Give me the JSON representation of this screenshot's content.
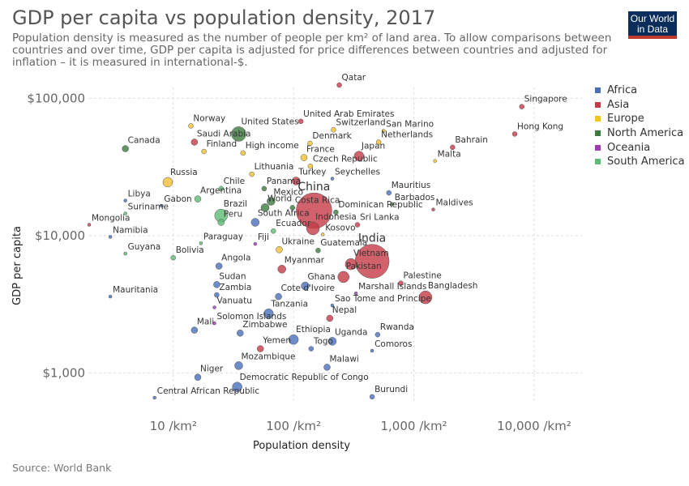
{
  "header": {
    "title": "GDP per capita vs population density, 2017",
    "subtitle": "Population density is measured as the number of people per km² of land area. To allow comparisons between countries and over time, GDP per capita is adjusted for price differences between countries and adjusted for inflation – it is measured in international-$."
  },
  "logo": {
    "line1": "Our World",
    "line2": "in Data"
  },
  "source": "Source: World Bank",
  "colors": {
    "Africa": "#4a6fb9",
    "Asia": "#c53b47",
    "Europe": "#f2c12e",
    "North America": "#3d7a3f",
    "Oceania": "#9c3cb5",
    "South America": "#5cbc74"
  },
  "chart_data": {
    "type": "scatter",
    "title": "GDP per capita vs population density, 2017",
    "xlabel": "Population density",
    "ylabel": "GDP per capita",
    "x_scale": "log",
    "y_scale": "log",
    "xlim": [
      2,
      25000
    ],
    "ylim": [
      600,
      120000
    ],
    "x_ticks": [
      {
        "value": 10,
        "label": "10 /km²"
      },
      {
        "value": 100,
        "label": "100 /km²"
      },
      {
        "value": 1000,
        "label": "1,000 /km²"
      },
      {
        "value": 10000,
        "label": "10,000 /km²"
      }
    ],
    "y_ticks": [
      {
        "value": 1000,
        "label": "$1,000"
      },
      {
        "value": 10000,
        "label": "$10,000"
      },
      {
        "value": 100000,
        "label": "$100,000"
      }
    ],
    "grid": true,
    "legend": {
      "position": "right",
      "entries": [
        "Africa",
        "Asia",
        "Europe",
        "North America",
        "Oceania",
        "South America"
      ]
    },
    "points": [
      {
        "label": "Qatar",
        "x": 240,
        "y": 125000,
        "region": "Asia",
        "size": 3
      },
      {
        "label": "Singapore",
        "x": 7900,
        "y": 87000,
        "region": "Asia",
        "size": 3
      },
      {
        "label": "United Arab Emirates",
        "x": 115,
        "y": 68000,
        "region": "Asia",
        "size": 3
      },
      {
        "label": "Norway",
        "x": 14,
        "y": 63000,
        "region": "Europe",
        "size": 3
      },
      {
        "label": "Switzerland",
        "x": 215,
        "y": 59000,
        "region": "Europe",
        "size": 3
      },
      {
        "label": "San Marino",
        "x": 560,
        "y": 58000,
        "region": "Europe",
        "size": 2
      },
      {
        "label": "United States",
        "x": 35,
        "y": 55000,
        "region": "North America",
        "size": 9
      },
      {
        "label": "Hong Kong",
        "x": 6900,
        "y": 55000,
        "region": "Asia",
        "size": 3
      },
      {
        "label": "Saudi Arabia",
        "x": 15,
        "y": 48000,
        "region": "Asia",
        "size": 4
      },
      {
        "label": "Netherlands",
        "x": 510,
        "y": 48000,
        "region": "Europe",
        "size": 3
      },
      {
        "label": "Denmark",
        "x": 137,
        "y": 47000,
        "region": "Europe",
        "size": 3
      },
      {
        "label": "Bahrain",
        "x": 2100,
        "y": 44000,
        "region": "Asia",
        "size": 3
      },
      {
        "label": "Canada",
        "x": 4,
        "y": 43000,
        "region": "North America",
        "size": 4
      },
      {
        "label": "Finland",
        "x": 18,
        "y": 41000,
        "region": "Europe",
        "size": 3
      },
      {
        "label": "High income",
        "x": 38,
        "y": 40000,
        "region": "Europe",
        "size": 3
      },
      {
        "label": "Japan",
        "x": 350,
        "y": 38000,
        "region": "Asia",
        "size": 6
      },
      {
        "label": "France",
        "x": 122,
        "y": 37000,
        "region": "Europe",
        "size": 4
      },
      {
        "label": "Malta",
        "x": 1500,
        "y": 35000,
        "region": "Europe",
        "size": 2
      },
      {
        "label": "Czech Republic",
        "x": 138,
        "y": 32000,
        "region": "Europe",
        "size": 3
      },
      {
        "label": "Lithuania",
        "x": 45,
        "y": 28000,
        "region": "Europe",
        "size": 3
      },
      {
        "label": "Seychelles",
        "x": 210,
        "y": 26000,
        "region": "Africa",
        "size": 2
      },
      {
        "label": "Turkey",
        "x": 105,
        "y": 25000,
        "region": "Asia",
        "size": 5
      },
      {
        "label": "Russia",
        "x": 9,
        "y": 24500,
        "region": "Europe",
        "size": 6
      },
      {
        "label": "Panama",
        "x": 57,
        "y": 22000,
        "region": "North America",
        "size": 3
      },
      {
        "label": "Chile",
        "x": 25,
        "y": 22000,
        "region": "South America",
        "size": 3
      },
      {
        "label": "Mauritius",
        "x": 620,
        "y": 20500,
        "region": "Africa",
        "size": 3
      },
      {
        "label": "Argentina",
        "x": 16,
        "y": 18500,
        "region": "South America",
        "size": 4
      },
      {
        "label": "Libya",
        "x": 4,
        "y": 18000,
        "region": "Africa",
        "size": 2
      },
      {
        "label": "China",
        "x": 148,
        "y": 15200,
        "region": "Asia",
        "size": 22
      },
      {
        "label": "Mexico",
        "x": 65,
        "y": 17800,
        "region": "North America",
        "size": 5
      },
      {
        "label": "Barbados",
        "x": 660,
        "y": 17000,
        "region": "North America",
        "size": 2
      },
      {
        "label": "Gabon",
        "x": 8,
        "y": 16500,
        "region": "Africa",
        "size": 2
      },
      {
        "label": "World",
        "x": 58,
        "y": 16000,
        "region": "North America",
        "size": 5
      },
      {
        "label": "Costa Rica",
        "x": 98,
        "y": 16000,
        "region": "North America",
        "size": 3
      },
      {
        "label": "Maldives",
        "x": 1450,
        "y": 15500,
        "region": "Asia",
        "size": 2
      },
      {
        "label": "Dominican Republic",
        "x": 225,
        "y": 14800,
        "region": "North America",
        "size": 3
      },
      {
        "label": "Suriname",
        "x": 4,
        "y": 14500,
        "region": "South America",
        "size": 2
      },
      {
        "label": "Brazil",
        "x": 25,
        "y": 14000,
        "region": "South America",
        "size": 8
      },
      {
        "label": "South Africa",
        "x": 48,
        "y": 12500,
        "region": "Africa",
        "size": 5
      },
      {
        "label": "Indonesia",
        "x": 145,
        "y": 11300,
        "region": "Asia",
        "size": 8
      },
      {
        "label": "Sri Lanka",
        "x": 340,
        "y": 12000,
        "region": "Asia",
        "size": 3
      },
      {
        "label": "Mongolia",
        "x": 2,
        "y": 12000,
        "region": "Asia",
        "size": 2
      },
      {
        "label": "Ecuador",
        "x": 68,
        "y": 10800,
        "region": "South America",
        "size": 3
      },
      {
        "label": "Peru",
        "x": 25,
        "y": 12500,
        "region": "South America",
        "size": 4
      },
      {
        "label": "Kosovo",
        "x": 175,
        "y": 10200,
        "region": "Europe",
        "size": 2
      },
      {
        "label": "Namibia",
        "x": 3,
        "y": 9800,
        "region": "Africa",
        "size": 2
      },
      {
        "label": "Fiji",
        "x": 48,
        "y": 8700,
        "region": "Oceania",
        "size": 2
      },
      {
        "label": "Paraguay",
        "x": 17,
        "y": 8800,
        "region": "South America",
        "size": 2
      },
      {
        "label": "Ukraine",
        "x": 76,
        "y": 7900,
        "region": "Europe",
        "size": 4
      },
      {
        "label": "Guatemala",
        "x": 160,
        "y": 7800,
        "region": "North America",
        "size": 3
      },
      {
        "label": "India",
        "x": 450,
        "y": 6500,
        "region": "Asia",
        "size": 21
      },
      {
        "label": "Vietnam",
        "x": 300,
        "y": 6200,
        "region": "Asia",
        "size": 7
      },
      {
        "label": "Guyana",
        "x": 4,
        "y": 7400,
        "region": "South America",
        "size": 2
      },
      {
        "label": "Bolivia",
        "x": 10,
        "y": 6900,
        "region": "South America",
        "size": 3
      },
      {
        "label": "Angola",
        "x": 24,
        "y": 6000,
        "region": "Africa",
        "size": 4
      },
      {
        "label": "Myanmar",
        "x": 80,
        "y": 5700,
        "region": "Asia",
        "size": 5
      },
      {
        "label": "Pakistan",
        "x": 260,
        "y": 5000,
        "region": "Asia",
        "size": 7
      },
      {
        "label": "Sudan",
        "x": 23,
        "y": 4400,
        "region": "Africa",
        "size": 4
      },
      {
        "label": "Ghana",
        "x": 125,
        "y": 4300,
        "region": "Africa",
        "size": 5
      },
      {
        "label": "Palestine",
        "x": 780,
        "y": 4500,
        "region": "Asia",
        "size": 3
      },
      {
        "label": "Marshall Islands",
        "x": 330,
        "y": 3800,
        "region": "Oceania",
        "size": 2
      },
      {
        "label": "Bangladesh",
        "x": 1250,
        "y": 3550,
        "region": "Asia",
        "size": 8
      },
      {
        "label": "Mauritania",
        "x": 3,
        "y": 3600,
        "region": "Africa",
        "size": 2
      },
      {
        "label": "Zambia",
        "x": 23,
        "y": 3700,
        "region": "Africa",
        "size": 3
      },
      {
        "label": "Cote d'Ivoire",
        "x": 75,
        "y": 3600,
        "region": "Africa",
        "size": 4
      },
      {
        "label": "Sao Tome and Principe",
        "x": 210,
        "y": 3100,
        "region": "Africa",
        "size": 2
      },
      {
        "label": "Vanuatu",
        "x": 22,
        "y": 3000,
        "region": "Oceania",
        "size": 2
      },
      {
        "label": "Tanzania",
        "x": 62,
        "y": 2700,
        "region": "Africa",
        "size": 6
      },
      {
        "label": "Nepal",
        "x": 200,
        "y": 2500,
        "region": "Asia",
        "size": 4
      },
      {
        "label": "Solomon Islands",
        "x": 22,
        "y": 2300,
        "region": "Oceania",
        "size": 2
      },
      {
        "label": "Mali",
        "x": 15,
        "y": 2050,
        "region": "Africa",
        "size": 4
      },
      {
        "label": "Rwanda",
        "x": 500,
        "y": 1900,
        "region": "Africa",
        "size": 3
      },
      {
        "label": "Zimbabwe",
        "x": 36,
        "y": 1950,
        "region": "Africa",
        "size": 4
      },
      {
        "label": "Ethiopia",
        "x": 100,
        "y": 1750,
        "region": "Africa",
        "size": 6
      },
      {
        "label": "Uganda",
        "x": 210,
        "y": 1700,
        "region": "Africa",
        "size": 5
      },
      {
        "label": "Yemen",
        "x": 53,
        "y": 1500,
        "region": "Asia",
        "size": 4
      },
      {
        "label": "Togo",
        "x": 140,
        "y": 1500,
        "region": "Africa",
        "size": 3
      },
      {
        "label": "Comoros",
        "x": 450,
        "y": 1450,
        "region": "Africa",
        "size": 2
      },
      {
        "label": "Mozambique",
        "x": 35,
        "y": 1130,
        "region": "Africa",
        "size": 5
      },
      {
        "label": "Malawi",
        "x": 190,
        "y": 1100,
        "region": "Africa",
        "size": 4
      },
      {
        "label": "Niger",
        "x": 16,
        "y": 930,
        "region": "Africa",
        "size": 4
      },
      {
        "label": "Democratic Republic of Congo",
        "x": 34,
        "y": 790,
        "region": "Africa",
        "size": 6
      },
      {
        "label": "Central African Republic",
        "x": 7,
        "y": 660,
        "region": "Africa",
        "size": 2
      },
      {
        "label": "Burundi",
        "x": 450,
        "y": 670,
        "region": "Africa",
        "size": 3
      }
    ]
  }
}
